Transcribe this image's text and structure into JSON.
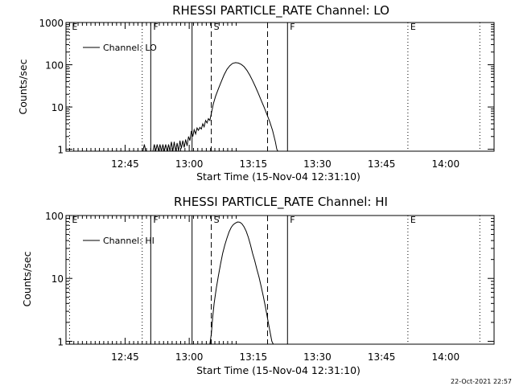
{
  "chart_data": [
    {
      "type": "line",
      "title": "RHESSI PARTICLE_RATE Channel: LO",
      "xlabel": "Start Time (15-Nov-04 12:31:10)",
      "ylabel": "Counts/sec",
      "y_scale": "log",
      "ylim": [
        0.9,
        1000
      ],
      "xlim": [
        "12:31:10",
        "14:11:20"
      ],
      "x_ticks": [
        "12:45",
        "13:00",
        "13:15",
        "13:30",
        "13:45",
        "14:00"
      ],
      "y_ticks": [
        "1",
        "10",
        "100",
        "1000"
      ],
      "legend": {
        "label": "Channel: LO",
        "placement": "top-left"
      },
      "grid": false,
      "markers": [
        {
          "time": "12:32:00",
          "label": "E",
          "style": "dotted"
        },
        {
          "time": "12:49:00",
          "label": "",
          "style": "dotted"
        },
        {
          "time": "12:51:00",
          "label": "F",
          "style": "solid"
        },
        {
          "time": "13:00:40",
          "label": "",
          "style": "solid"
        },
        {
          "time": "13:05:10",
          "label": "S",
          "style": "dashed"
        },
        {
          "time": "13:18:20",
          "label": "",
          "style": "dashed"
        },
        {
          "time": "13:23:00",
          "label": "F",
          "style": "solid"
        },
        {
          "time": "13:51:10",
          "label": "E",
          "style": "dotted"
        },
        {
          "time": "14:08:00",
          "label": "",
          "style": "dotted"
        }
      ],
      "series": [
        {
          "name": "Channel: LO",
          "points": [
            [
              "12:49:10",
              0.85
            ],
            [
              "12:49:30",
              1.3
            ],
            [
              "12:49:50",
              0.85
            ],
            [
              "12:51:30",
              0.85
            ],
            [
              "12:51:50",
              1.3
            ],
            [
              "12:52:10",
              0.85
            ],
            [
              "12:52:30",
              1.3
            ],
            [
              "12:52:50",
              0.85
            ],
            [
              "12:53:10",
              1.3
            ],
            [
              "12:53:30",
              0.85
            ],
            [
              "12:53:50",
              1.3
            ],
            [
              "12:54:10",
              0.85
            ],
            [
              "12:54:30",
              1.3
            ],
            [
              "12:54:50",
              0.85
            ],
            [
              "12:55:10",
              1.3
            ],
            [
              "12:55:30",
              0.85
            ],
            [
              "12:55:50",
              1.5
            ],
            [
              "12:56:10",
              0.85
            ],
            [
              "12:56:30",
              1.5
            ],
            [
              "12:56:50",
              0.9
            ],
            [
              "12:57:10",
              1.4
            ],
            [
              "12:57:30",
              0.9
            ],
            [
              "12:57:50",
              1.6
            ],
            [
              "12:58:10",
              1.05
            ],
            [
              "12:58:30",
              1.6
            ],
            [
              "12:58:50",
              1.1
            ],
            [
              "12:59:10",
              1.7
            ],
            [
              "12:59:30",
              1.2
            ],
            [
              "12:59:50",
              2.0
            ],
            [
              "13:00:10",
              1.6
            ],
            [
              "13:00:30",
              2.7
            ],
            [
              "13:00:50",
              2.0
            ],
            [
              "13:01:10",
              2.9
            ],
            [
              "13:01:30",
              2.3
            ],
            [
              "13:01:50",
              3.2
            ],
            [
              "13:02:10",
              2.8
            ],
            [
              "13:02:30",
              3.3
            ],
            [
              "13:02:50",
              3.0
            ],
            [
              "13:03:10",
              4.0
            ],
            [
              "13:03:30",
              3.4
            ],
            [
              "13:03:50",
              4.8
            ],
            [
              "13:04:10",
              4.2
            ],
            [
              "13:04:30",
              5.3
            ],
            [
              "13:04:50",
              4.8
            ],
            [
              "13:05:10",
              7.0
            ],
            [
              "13:05:40",
              12
            ],
            [
              "13:06:10",
              18
            ],
            [
              "13:06:50",
              27
            ],
            [
              "13:07:30",
              40
            ],
            [
              "13:08:10",
              58
            ],
            [
              "13:08:50",
              78
            ],
            [
              "13:09:30",
              95
            ],
            [
              "13:10:10",
              108
            ],
            [
              "13:10:50",
              112
            ],
            [
              "13:11:30",
              110
            ],
            [
              "13:12:10",
              102
            ],
            [
              "13:12:50",
              90
            ],
            [
              "13:13:30",
              74
            ],
            [
              "13:14:10",
              57
            ],
            [
              "13:14:50",
              42
            ],
            [
              "13:15:30",
              30
            ],
            [
              "13:16:10",
              21
            ],
            [
              "13:16:50",
              14.5
            ],
            [
              "13:17:30",
              10
            ],
            [
              "13:18:10",
              6.8
            ],
            [
              "13:18:50",
              4.5
            ],
            [
              "13:19:30",
              2.8
            ],
            [
              "13:20:10",
              1.5
            ],
            [
              "13:20:30",
              1.0
            ],
            [
              "13:20:45",
              0.85
            ]
          ]
        }
      ]
    },
    {
      "type": "line",
      "title": "RHESSI PARTICLE_RATE Channel: HI",
      "xlabel": "Start Time (15-Nov-04 12:31:10)",
      "ylabel": "Counts/sec",
      "y_scale": "log",
      "ylim": [
        0.9,
        100
      ],
      "xlim": [
        "12:31:10",
        "14:11:20"
      ],
      "x_ticks": [
        "12:45",
        "13:00",
        "13:15",
        "13:30",
        "13:45",
        "14:00"
      ],
      "y_ticks": [
        "1",
        "10",
        "100"
      ],
      "legend": {
        "label": "Channel: HI",
        "placement": "top-left"
      },
      "grid": false,
      "markers": [
        {
          "time": "12:32:00",
          "label": "E",
          "style": "dotted"
        },
        {
          "time": "12:49:00",
          "label": "",
          "style": "dotted"
        },
        {
          "time": "12:51:00",
          "label": "F",
          "style": "solid"
        },
        {
          "time": "13:00:40",
          "label": "",
          "style": "solid"
        },
        {
          "time": "13:05:10",
          "label": "S",
          "style": "dashed"
        },
        {
          "time": "13:18:20",
          "label": "",
          "style": "dashed"
        },
        {
          "time": "13:23:00",
          "label": "F",
          "style": "solid"
        },
        {
          "time": "13:51:10",
          "label": "E",
          "style": "dotted"
        },
        {
          "time": "14:08:00",
          "label": "",
          "style": "dotted"
        }
      ],
      "series": [
        {
          "name": "Channel: HI",
          "points": [
            [
              "13:04:50",
              0.85
            ],
            [
              "13:05:10",
              1.3
            ],
            [
              "13:05:30",
              2.4
            ],
            [
              "13:05:50",
              4.0
            ],
            [
              "13:06:20",
              7.0
            ],
            [
              "13:06:50",
              11
            ],
            [
              "13:07:20",
              17
            ],
            [
              "13:07:50",
              25
            ],
            [
              "13:08:20",
              34
            ],
            [
              "13:08:50",
              44
            ],
            [
              "13:09:20",
              55
            ],
            [
              "13:09:50",
              65
            ],
            [
              "13:10:20",
              72
            ],
            [
              "13:10:50",
              76
            ],
            [
              "13:11:20",
              79
            ],
            [
              "13:11:50",
              78
            ],
            [
              "13:12:20",
              74
            ],
            [
              "13:12:50",
              66
            ],
            [
              "13:13:20",
              56
            ],
            [
              "13:13:50",
              45
            ],
            [
              "13:14:20",
              34
            ],
            [
              "13:14:50",
              25
            ],
            [
              "13:15:20",
              19
            ],
            [
              "13:15:50",
              14
            ],
            [
              "13:16:20",
              10.5
            ],
            [
              "13:16:50",
              7.5
            ],
            [
              "13:17:20",
              5.2
            ],
            [
              "13:17:50",
              3.5
            ],
            [
              "13:18:20",
              2.3
            ],
            [
              "13:18:50",
              1.5
            ],
            [
              "13:19:20",
              1.0
            ],
            [
              "13:19:40",
              0.85
            ]
          ]
        }
      ]
    }
  ],
  "timestamp": "22-Oct-2021 22:57"
}
